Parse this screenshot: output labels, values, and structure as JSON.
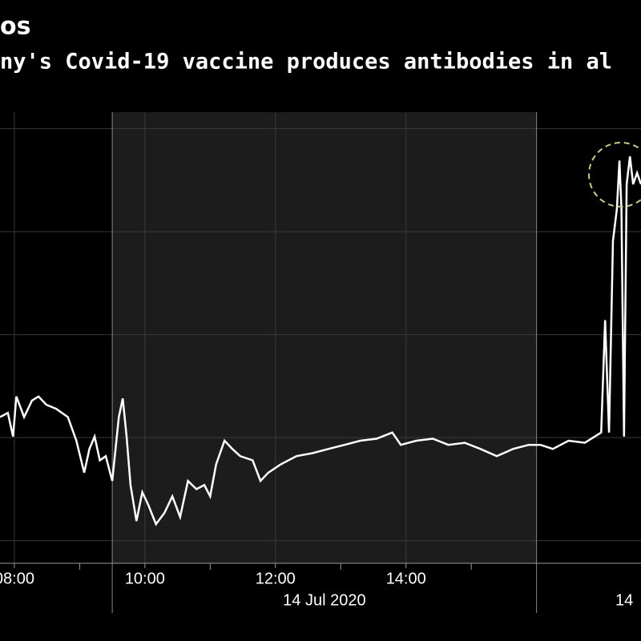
{
  "chart_data": {
    "type": "line",
    "title": "os",
    "subtitle": "ny's Covid-19 vaccine produces antibodies in al",
    "x": [
      7.78,
      7.9,
      7.98,
      8.03,
      8.15,
      8.27,
      8.37,
      8.49,
      8.64,
      8.82,
      8.95,
      9.07,
      9.15,
      9.23,
      9.31,
      9.4,
      9.5,
      9.6,
      9.66,
      9.72,
      9.78,
      9.87,
      9.96,
      10.05,
      10.17,
      10.3,
      10.42,
      10.54,
      10.66,
      10.79,
      10.91,
      11.0,
      11.09,
      11.22,
      11.34,
      11.46,
      11.65,
      11.77,
      11.89,
      12.08,
      12.32,
      12.57,
      12.81,
      13.06,
      13.3,
      13.55,
      13.79,
      13.92,
      14.16,
      14.41,
      14.65,
      14.9,
      15.14,
      15.39,
      15.64,
      15.88,
      16.06,
      16.25,
      16.49,
      16.74,
      16.99,
      17.05,
      17.11,
      17.17,
      17.23,
      17.27,
      17.3,
      17.34,
      17.38,
      17.43,
      17.48,
      17.54,
      17.6
    ],
    "values": [
      2.2,
      2.24,
      2.01,
      2.4,
      2.2,
      2.36,
      2.4,
      2.32,
      2.28,
      2.2,
      1.97,
      1.66,
      1.89,
      2.01,
      1.78,
      1.82,
      1.58,
      2.2,
      2.38,
      2.01,
      1.54,
      1.19,
      1.47,
      1.35,
      1.16,
      1.27,
      1.43,
      1.23,
      1.58,
      1.5,
      1.54,
      1.43,
      1.74,
      1.97,
      1.89,
      1.82,
      1.78,
      1.58,
      1.66,
      1.74,
      1.82,
      1.85,
      1.89,
      1.93,
      1.97,
      1.99,
      2.05,
      1.93,
      1.97,
      1.99,
      1.93,
      1.95,
      1.89,
      1.82,
      1.89,
      1.93,
      1.93,
      1.89,
      1.97,
      1.95,
      2.05,
      3.14,
      2.05,
      3.91,
      4.22,
      4.69,
      4.22,
      2.01,
      4.46,
      4.73,
      4.46,
      4.57,
      4.46
    ],
    "color": "#ffffff",
    "xlim": [
      7.78,
      17.6
    ],
    "ylim": [
      0.78,
      5.16
    ],
    "xticks": [
      {
        "value": 8,
        "label": "08:00"
      },
      {
        "value": 10,
        "label": "10:00"
      },
      {
        "value": 12,
        "label": "12:00"
      },
      {
        "value": 14,
        "label": "14:00"
      }
    ],
    "xminor_ticks": [
      9,
      11,
      13,
      15
    ],
    "yticks": [
      1,
      2,
      3,
      4,
      5
    ],
    "session": [
      9.5,
      16
    ],
    "date_labels": [
      "14 Jul 2020",
      "14"
    ],
    "grid": true
  }
}
